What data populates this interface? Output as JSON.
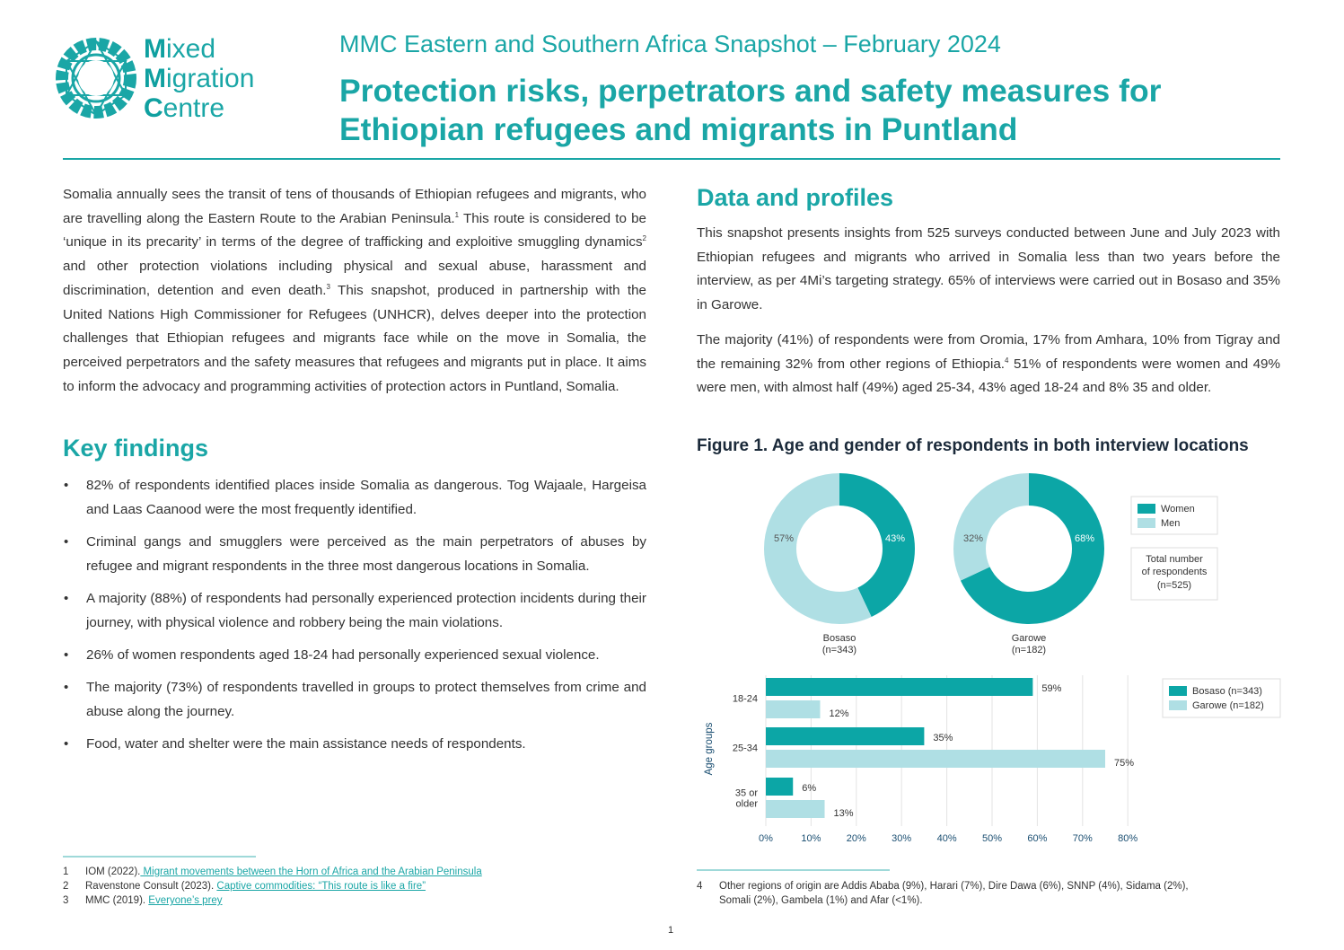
{
  "logo": {
    "line1_initial": "M",
    "line1_rest": "ixed",
    "line2_initial": "M",
    "line2_rest": "igration",
    "line3_initial": "C",
    "line3_rest": "entre"
  },
  "header": {
    "subtitle": "MMC Eastern and Southern Africa Snapshot – February 2024",
    "title": "Protection risks, perpetrators and safety measures for Ethiopian refugees and migrants in Puntland"
  },
  "intro": {
    "p1": "Somalia annually sees the transit of tens of thousands of Ethiopian refugees and migrants, who are travelling along the Eastern Route to the Arabian Peninsula.",
    "fn1": "1",
    "p2": " This route is considered to be ‘unique in its precarity’ in terms of the degree of trafficking and exploitive smuggling dynamics",
    "fn2": "2",
    "p3": " and other protection violations including physical and sexual abuse, harassment and discrimination, detention and even death.",
    "fn3": "3",
    "p4": " This snapshot, produced in partnership with the United Nations High Commissioner for Refugees (UNHCR), delves deeper into the protection challenges that Ethiopian refugees and migrants face while on the move in Somalia, the perceived perpetrators and the safety measures that refugees and migrants put in place. It aims to inform the advocacy and programming activities of protection actors in Puntland, Somalia."
  },
  "key_findings": {
    "heading": "Key findings",
    "items": [
      "82% of respondents identified places inside Somalia as dangerous. Tog Wajaale, Hargeisa and Laas Caanood were the most frequently identified.",
      "Criminal gangs and smugglers were perceived as the main perpetrators of abuses by refugee and migrant respondents in the three most dangerous locations in Somalia.",
      "A majority (88%) of respondents had personally experienced protection incidents during their journey, with physical violence and robbery being the main violations.",
      "26% of women respondents aged 18-24 had personally experienced sexual violence.",
      "The majority (73%) of respondents travelled in groups to protect themselves from crime and abuse along the journey.",
      "Food, water and shelter were the main assistance needs of respondents."
    ]
  },
  "data_profiles": {
    "heading": "Data and profiles",
    "p1": "This snapshot presents insights from 525 surveys conducted between June and July 2023 with Ethiopian refugees and migrants who arrived in Somalia less than two years before the interview, as per 4Mi’s targeting strategy. 65% of interviews were carried out in Bosaso and 35% in Garowe.",
    "p2a": "The majority (41%) of respondents were from Oromia, 17% from Amhara, 10% from Tigray and the remaining 32% from other regions of Ethiopia.",
    "fn4": "4",
    "p2b": " 51% of respondents were women and 49% were men, with almost half (49%) aged 25-34, 43% aged 18-24 and 8% 35 and older."
  },
  "figure": {
    "title": "Figure 1. Age and gender of respondents in both interview locations"
  },
  "chart_data": [
    {
      "type": "pie",
      "variant": "donut",
      "series": [
        {
          "name": "Bosaso",
          "name_line2": "(n=343)",
          "values": [
            43,
            57
          ]
        },
        {
          "name": "Garowe",
          "name_line2": "(n=182)",
          "values": [
            68,
            32
          ]
        }
      ],
      "categories": [
        "Women",
        "Men"
      ],
      "value_labels": {
        "bosaso_women": "43%",
        "bosaso_men": "57%",
        "garowe_women": "68%",
        "garowe_men": "32%"
      },
      "legend": [
        "Women",
        "Men"
      ],
      "note_lines": [
        "Total number",
        "of respondents",
        "(n=525)"
      ],
      "legend_position": "right"
    },
    {
      "type": "bar",
      "orientation": "horizontal",
      "categories": [
        "18-24",
        "25-34",
        "35 or older"
      ],
      "category_lines": [
        [
          "18-24"
        ],
        [
          "25-34"
        ],
        [
          "35 or",
          "older"
        ]
      ],
      "series": [
        {
          "name": "Bosaso (n=343)",
          "values": [
            59,
            35,
            6
          ]
        },
        {
          "name": "Garowe (n=182)",
          "values": [
            12,
            75,
            13
          ]
        }
      ],
      "ylabel": "Age groups",
      "xlim": [
        0,
        80
      ],
      "xticks": [
        "0%",
        "10%",
        "20%",
        "30%",
        "40%",
        "50%",
        "60%",
        "70%",
        "80%"
      ],
      "grid": true,
      "legend_position": "top-right"
    }
  ],
  "colors": {
    "primary": "#0ca6a6",
    "light": "#afdfe4",
    "text": "#333333",
    "heading": "#1aa6a6"
  },
  "footnotes": {
    "left": [
      {
        "num": "1",
        "text": "IOM (2022).",
        "link": " Migrant movements between the Horn of Africa and the Arabian Peninsula"
      },
      {
        "num": "2",
        "text": "Ravenstone Consult (2023). ",
        "link": "Captive commodities: “This route is like a fire”"
      },
      {
        "num": "3",
        "text": "MMC (2019). ",
        "link": "Everyone’s prey"
      }
    ],
    "right": {
      "num": "4",
      "line1": "Other regions of origin are Addis Ababa (9%), Harari (7%), Dire Dawa (6%), SNNP (4%), Sidama (2%),",
      "line2": "Somali (2%), Gambela (1%) and Afar (<1%)."
    }
  },
  "page_number": "1"
}
